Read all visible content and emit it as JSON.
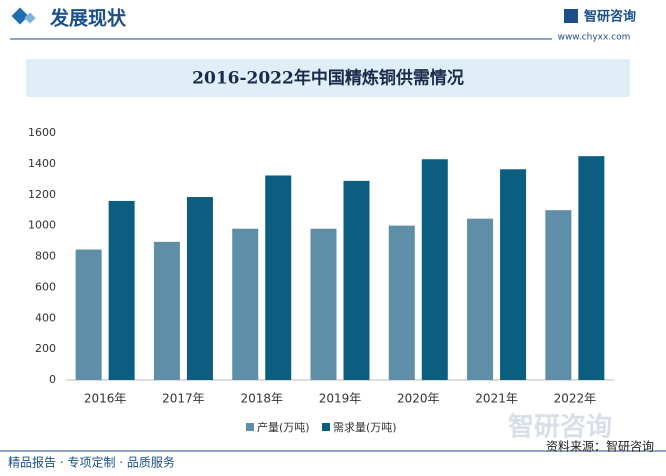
{
  "header": {
    "section": "发展现状",
    "brand": "智研咨询",
    "url": "www.chyxx.com"
  },
  "chart_data": {
    "type": "bar",
    "title": "2016-2022年中国精炼铜供需情况",
    "categories": [
      "2016年",
      "2017年",
      "2018年",
      "2019年",
      "2020年",
      "2021年",
      "2022年"
    ],
    "series": [
      {
        "name": "产量(万吨)",
        "color": "#5f8fa7",
        "values": [
          845,
          895,
          980,
          980,
          1000,
          1045,
          1100
        ]
      },
      {
        "name": "需求量(万吨)",
        "color": "#0b5e80",
        "values": [
          1160,
          1185,
          1325,
          1290,
          1430,
          1365,
          1450
        ]
      }
    ],
    "ylim": [
      0,
      1600
    ],
    "yticks": [
      0,
      200,
      400,
      600,
      800,
      1000,
      1200,
      1400,
      1600
    ],
    "legend": "bottom"
  },
  "footer": {
    "slogan": "精品报告 · 专项定制 · 品质服务",
    "source": "资料来源：智研咨询"
  }
}
